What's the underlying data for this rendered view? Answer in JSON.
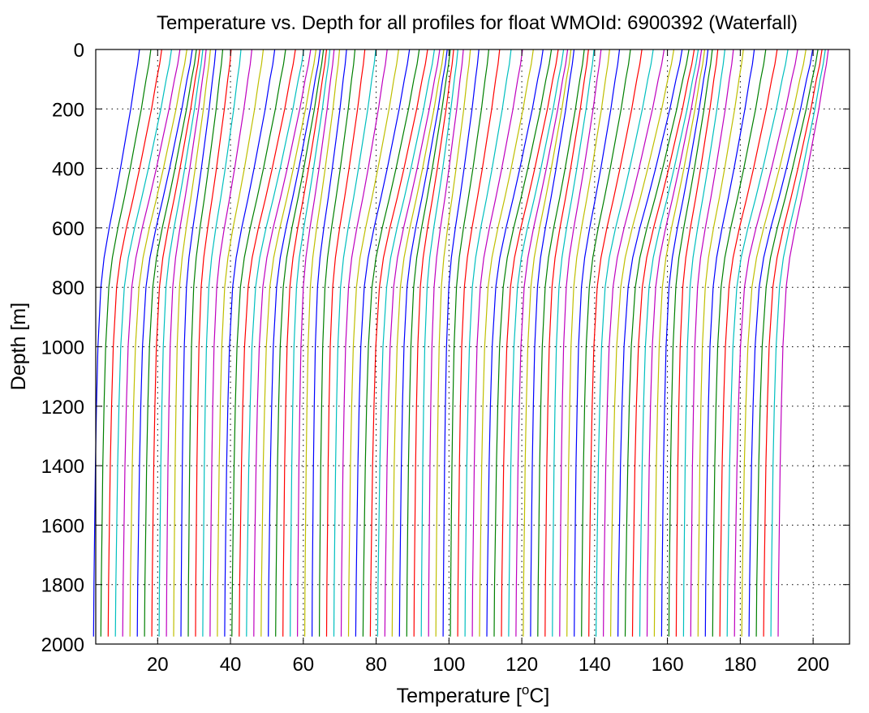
{
  "chart_data": {
    "type": "line",
    "title": "Temperature vs. Depth for all profiles for float WMOId: 6900392 (Waterfall)",
    "xlabel_main": "Temperature [",
    "xlabel_sup": "o",
    "xlabel_end": "C]",
    "ylabel": "Depth [m]",
    "xlim": [
      3,
      210
    ],
    "ylim": [
      0,
      2000
    ],
    "y_reversed": true,
    "grid": "dotted",
    "x_ticks": [
      "20",
      "40",
      "60",
      "80",
      "100",
      "120",
      "140",
      "160",
      "180",
      "200"
    ],
    "x_tick_values": [
      20,
      40,
      60,
      80,
      100,
      120,
      140,
      160,
      180,
      200
    ],
    "y_ticks": [
      "0",
      "200",
      "400",
      "600",
      "800",
      "1000",
      "1200",
      "1400",
      "1600",
      "1800",
      "2000"
    ],
    "y_tick_values": [
      0,
      200,
      400,
      600,
      800,
      1000,
      1200,
      1400,
      1600,
      1800,
      2000
    ],
    "waterfall": {
      "profile_count": 95,
      "offset_per_profile": 2,
      "max_depth": 1975,
      "profile_shape": {
        "depth": [
          0,
          50,
          100,
          150,
          200,
          300,
          400,
          500,
          600,
          700,
          800,
          1000,
          1200,
          1400,
          1600,
          1800,
          1975
        ],
        "temperature": [
          15.0,
          14.5,
          13.8,
          13.2,
          12.6,
          11.2,
          9.8,
          8.3,
          6.7,
          5.3,
          4.4,
          3.6,
          3.2,
          2.9,
          2.7,
          2.5,
          2.4
        ]
      }
    },
    "series_colors": [
      "#0000ff",
      "#008000",
      "#ff0000",
      "#00bfbf",
      "#bf00bf",
      "#bfbf00"
    ]
  }
}
